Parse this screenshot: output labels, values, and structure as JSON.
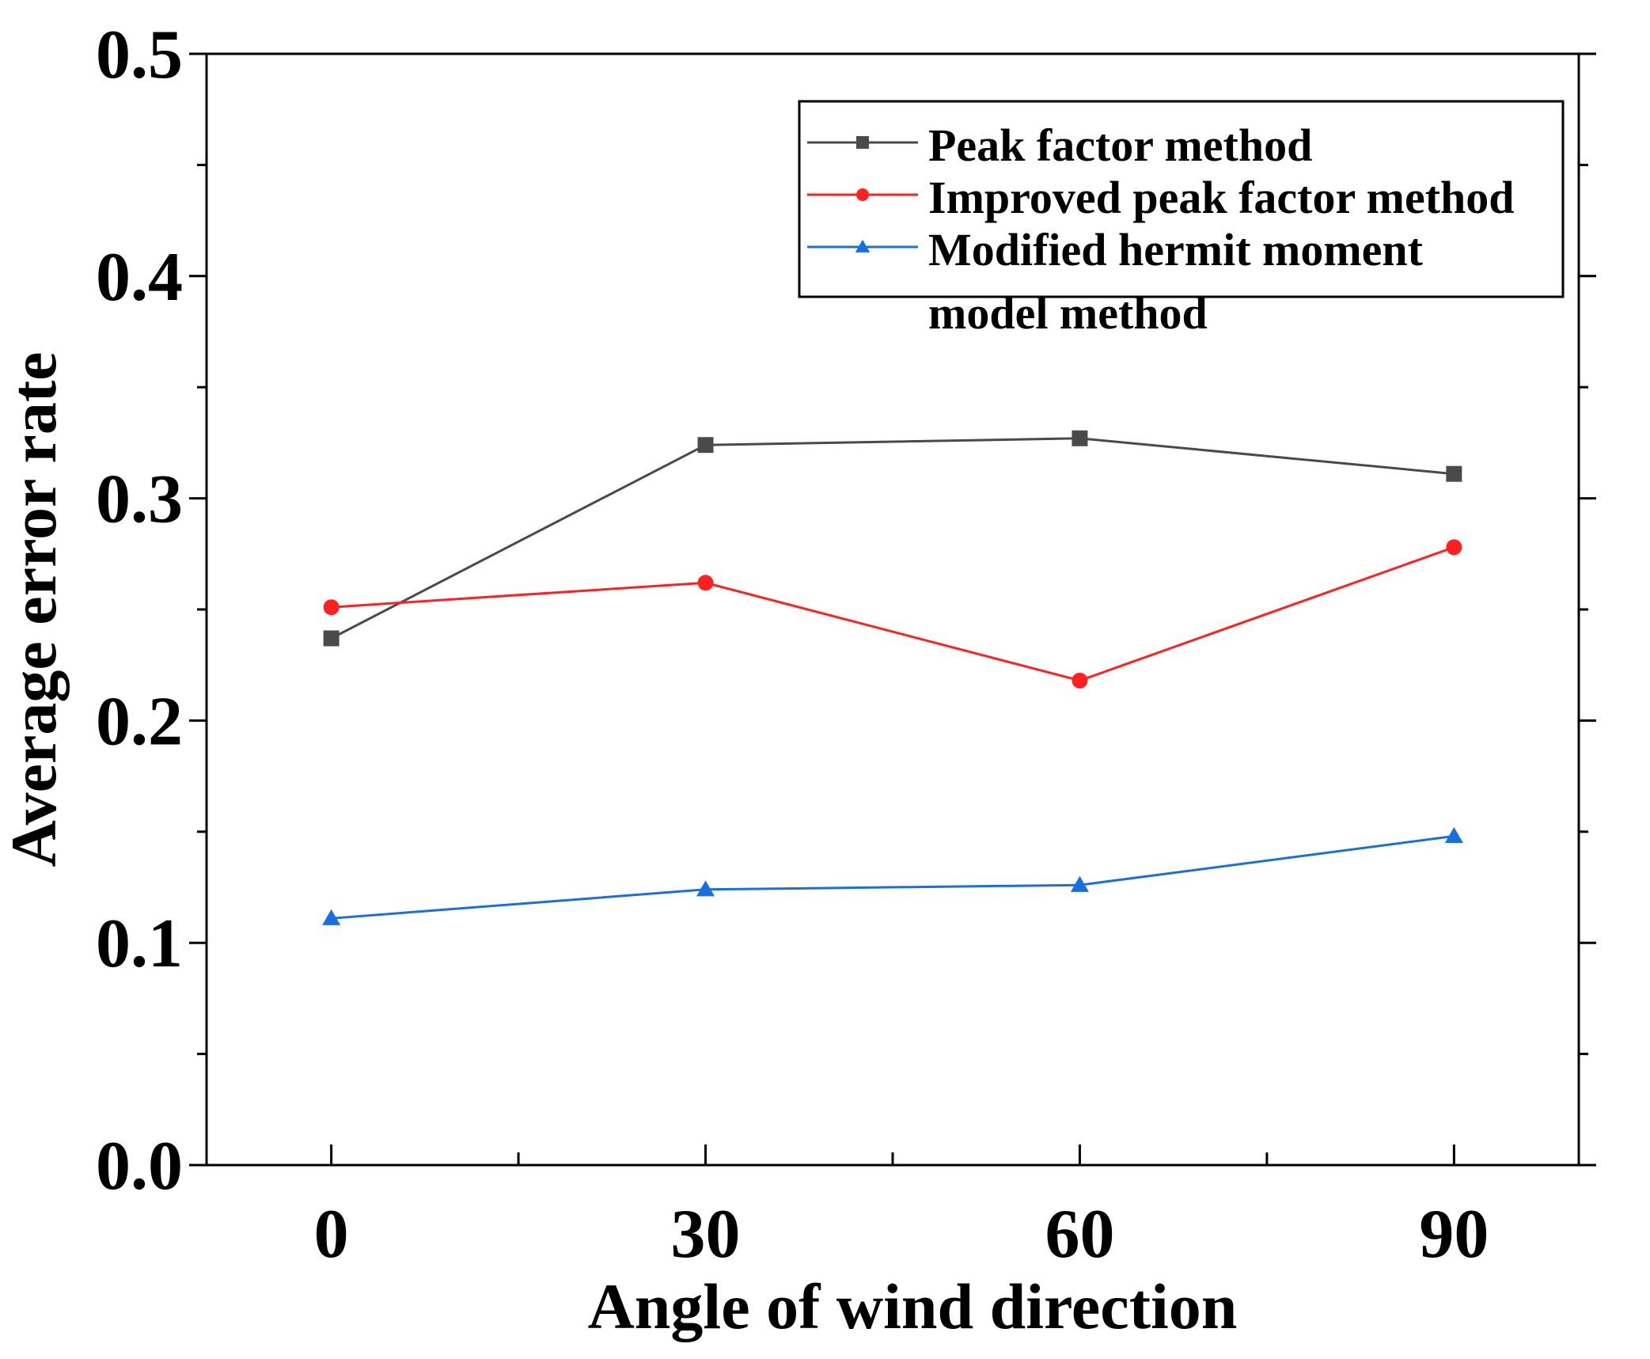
{
  "chart_data": {
    "type": "line",
    "title": "",
    "xlabel": "Angle of wind direction",
    "ylabel": "Average error rate",
    "x": [
      0,
      30,
      60,
      90
    ],
    "xlim": [
      -10,
      100
    ],
    "ylim": [
      0.0,
      0.5
    ],
    "xticks": [
      0,
      30,
      60,
      90
    ],
    "xtick_labels": [
      "0",
      "30",
      "60",
      "90"
    ],
    "yticks": [
      0.0,
      0.1,
      0.2,
      0.3,
      0.4,
      0.5
    ],
    "ytick_labels": [
      "0.0",
      "0.1",
      "0.2",
      "0.3",
      "0.4",
      "0.5"
    ],
    "grid": false,
    "legend_position": "top-right",
    "series": [
      {
        "name": "Peak factor method",
        "legend_lines": [
          "Peak factor method"
        ],
        "values": [
          0.237,
          0.324,
          0.327,
          0.311
        ],
        "color": "#4a4a4a",
        "marker": "square"
      },
      {
        "name": "Improved peak factor method",
        "legend_lines": [
          "Improved peak factor method"
        ],
        "values": [
          0.251,
          0.262,
          0.218,
          0.278
        ],
        "color": "#ff2020",
        "marker": "circle"
      },
      {
        "name": "Modified hermit moment model method",
        "legend_lines": [
          "Modified hermit moment",
          "model method"
        ],
        "values": [
          0.111,
          0.124,
          0.126,
          0.148
        ],
        "color": "#1a6fe0",
        "marker": "triangle"
      }
    ]
  }
}
